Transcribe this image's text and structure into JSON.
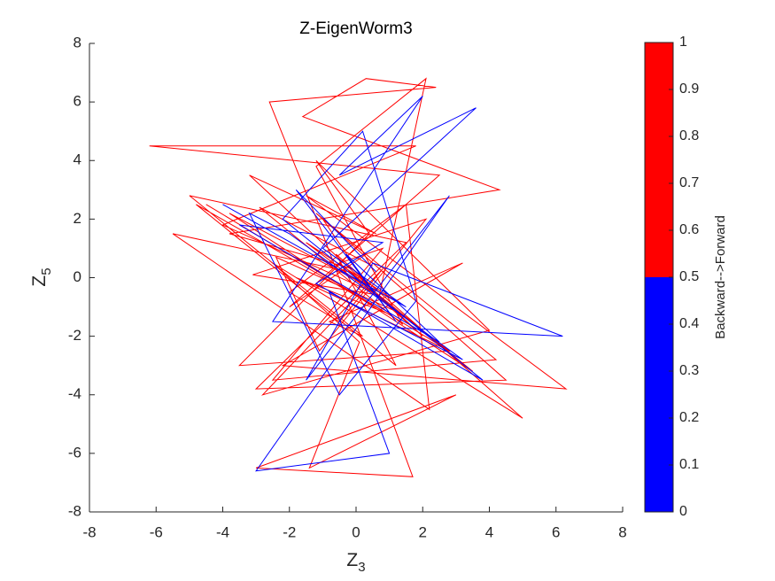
{
  "chart_data": {
    "type": "line",
    "title": "Z-EigenWorm3",
    "xlabel": {
      "text": "Z",
      "subscript": "3"
    },
    "ylabel": {
      "text": "Z",
      "subscript": "5"
    },
    "xlim": [
      -8,
      8
    ],
    "ylim": [
      -8,
      8
    ],
    "xticks": [
      -8,
      -6,
      -4,
      -2,
      0,
      2,
      4,
      6,
      8
    ],
    "yticks": [
      -8,
      -6,
      -4,
      -2,
      0,
      2,
      4,
      6,
      8
    ],
    "series": [
      {
        "color": "#ff0000",
        "x": [
          -4.5,
          2.8,
          -1.5,
          1.2,
          -3.8,
          3.5,
          -0.5,
          0.8,
          -2.5,
          4.2,
          -1,
          0.5,
          -4,
          1.8,
          -6.2,
          2.5,
          -2,
          0.3,
          -1.2,
          4.5,
          -3,
          1.5,
          -5,
          0.2,
          -0.8,
          3.2,
          -2.2,
          6.3,
          -1.5,
          0.6,
          -3.2,
          2,
          -0.2,
          -5.5,
          2.2,
          1.5,
          -2,
          -0.5,
          0.8,
          -2.8,
          4,
          -1.2,
          0.4,
          -3.5,
          2.8,
          -1.8,
          0.9,
          -4.8,
          1.2,
          -0.6,
          5,
          -2.5,
          0.1,
          -1.4,
          3,
          -3,
          1.7,
          -0.9,
          -2.6,
          2.4,
          0.3,
          -1.6,
          4.3,
          -3.8,
          -0.1,
          1.1,
          -2.4,
          -1.1,
          2.1,
          -3.1,
          0.7,
          2.1,
          -1.2,
          1.4,
          -2.9,
          0.5
        ],
        "values": [
          2.5,
          -2.5,
          1.2,
          -0.8,
          2.2,
          -3.2,
          0.5,
          1,
          -3.5,
          -2.8,
          2,
          -0.5,
          1.8,
          4.5,
          4.5,
          3.5,
          -1,
          0.8,
          2.2,
          -3.5,
          -3.8,
          1.2,
          2.8,
          -2,
          -1.5,
          0.5,
          -3,
          -3.8,
          2.8,
          1.5,
          3.5,
          -2,
          0.2,
          1.5,
          -4.5,
          2.5,
          -0.5,
          -1.5,
          0.3,
          -4,
          -1.8,
          4,
          1.5,
          -3,
          -2.5,
          0,
          -1.2,
          2.5,
          -3,
          0.8,
          -4.8,
          0.5,
          -2.2,
          -6.5,
          -4,
          -6.5,
          -6.8,
          1.2,
          6,
          6.5,
          6.8,
          5.5,
          3,
          1.5,
          0.3,
          -1.1,
          0.7,
          -2.5,
          2,
          0.1,
          -0.6,
          6.8,
          3.8,
          -1.6,
          2.4,
          0.4
        ]
      },
      {
        "color": "#0000ff",
        "x": [
          -4,
          1.5,
          -1,
          3.6,
          -0.5,
          2,
          -2.5,
          6.2,
          0.5,
          -1.5,
          2.8,
          -3,
          1,
          -0.8,
          3.2,
          -2,
          -3.2,
          -0.5,
          1.8,
          0.2,
          -2.2,
          3.8,
          -1.2,
          0.8,
          -3.5,
          2.5,
          -0.3,
          1.2,
          -1.8,
          0.6
        ],
        "values": [
          2.5,
          -1,
          1,
          5.8,
          3.5,
          6.2,
          -1.5,
          -2,
          0.5,
          -3.5,
          2.8,
          -6.6,
          -6,
          -0.5,
          -2.8,
          1.5,
          2.2,
          -4,
          -0.8,
          5,
          2,
          -3.5,
          -0.2,
          1.2,
          1.8,
          -2.2,
          0.8,
          -1.5,
          3,
          0.2
        ]
      }
    ],
    "colorbar": {
      "label": "Backward-->Forward",
      "lim": [
        0,
        1
      ],
      "ticks": [
        0,
        0.1,
        0.2,
        0.3,
        0.4,
        0.5,
        0.6,
        0.7,
        0.8,
        0.9,
        1
      ],
      "segments": [
        {
          "from": 0,
          "to": 0.5,
          "color": "#0000ff"
        },
        {
          "from": 0.5,
          "to": 1,
          "color": "#ff0000"
        }
      ]
    }
  }
}
